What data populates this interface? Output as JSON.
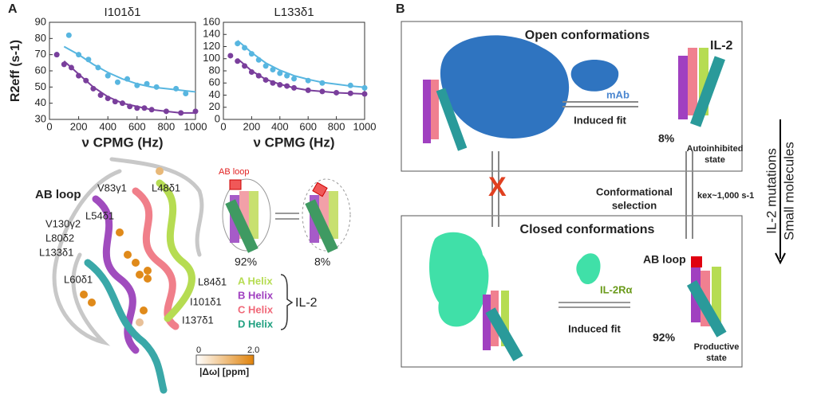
{
  "chart_data": [
    {
      "type": "scatter",
      "title": "I101δ1",
      "ylabel": "R2eff (s-1)",
      "xlabel": "ν CPMG (Hz)",
      "xlim": [
        0,
        1000
      ],
      "xticks": [
        0,
        200,
        400,
        600,
        800,
        1000
      ],
      "ylim": [
        30,
        90
      ],
      "yticks": [
        30,
        40,
        50,
        60,
        70,
        80,
        90
      ],
      "series": [
        {
          "color": "#58b6e0",
          "mode": "markers",
          "x": [
            50,
            133,
            200,
            267,
            333,
            400,
            467,
            533,
            600,
            667,
            733,
            867,
            933
          ],
          "values": [
            70,
            82,
            70,
            67,
            62,
            57,
            53,
            55,
            51,
            52,
            50,
            49,
            46
          ]
        },
        {
          "color": "#58b6e0",
          "mode": "line",
          "x": [
            100,
            200,
            300,
            400,
            500,
            600,
            700,
            800,
            900,
            1000
          ],
          "values": [
            75,
            70,
            64,
            59,
            55,
            52,
            50,
            49,
            48,
            47
          ]
        },
        {
          "color": "#7a3f9c",
          "mode": "markers",
          "x": [
            50,
            100,
            150,
            200,
            250,
            300,
            350,
            400,
            450,
            500,
            550,
            600,
            650,
            700,
            800,
            900,
            1000
          ],
          "values": [
            70,
            64,
            62,
            57,
            54,
            49,
            45,
            43,
            41,
            40,
            38,
            37,
            37,
            36,
            35,
            34,
            35
          ]
        },
        {
          "color": "#7a3f9c",
          "mode": "line",
          "x": [
            100,
            200,
            300,
            400,
            500,
            600,
            700,
            800,
            900,
            1000
          ],
          "values": [
            66,
            58,
            50,
            44,
            40,
            38,
            36,
            35,
            34,
            34
          ]
        }
      ]
    },
    {
      "type": "scatter",
      "title": "L133δ1",
      "xlabel": "ν CPMG (Hz)",
      "xlim": [
        0,
        1000
      ],
      "xticks": [
        0,
        200,
        400,
        600,
        800,
        1000
      ],
      "ylim": [
        0,
        160
      ],
      "yticks": [
        0,
        20,
        40,
        60,
        80,
        100,
        120,
        140,
        160
      ],
      "series": [
        {
          "color": "#58b6e0",
          "mode": "markers",
          "x": [
            100,
            150,
            200,
            250,
            300,
            350,
            400,
            450,
            500,
            600,
            700,
            900,
            1000
          ],
          "values": [
            125,
            118,
            108,
            98,
            88,
            82,
            76,
            72,
            67,
            64,
            60,
            56,
            52
          ]
        },
        {
          "color": "#58b6e0",
          "mode": "line",
          "x": [
            100,
            200,
            300,
            400,
            500,
            600,
            700,
            800,
            900,
            1000
          ],
          "values": [
            130,
            110,
            93,
            81,
            72,
            66,
            61,
            58,
            55,
            53
          ]
        },
        {
          "color": "#7a3f9c",
          "mode": "markers",
          "x": [
            50,
            100,
            150,
            200,
            250,
            300,
            350,
            400,
            450,
            500,
            600,
            700,
            800,
            900,
            1000
          ],
          "values": [
            105,
            96,
            88,
            78,
            72,
            65,
            60,
            57,
            55,
            52,
            48,
            46,
            44,
            43,
            42
          ]
        },
        {
          "color": "#7a3f9c",
          "mode": "line",
          "x": [
            100,
            200,
            300,
            400,
            500,
            600,
            700,
            800,
            900,
            1000
          ],
          "values": [
            100,
            80,
            66,
            58,
            52,
            48,
            46,
            44,
            43,
            42
          ]
        }
      ]
    }
  ],
  "figure": {
    "panel_a": {
      "letter": "A",
      "ab_loop": "AB loop",
      "residues": [
        "V83γ1",
        "L48δ1",
        "L54δ1",
        "V130γ2",
        "L80δ2",
        "L133δ1",
        "L60δ1",
        "L84δ1",
        "I101δ1",
        "I137δ1"
      ],
      "helices": [
        "A Helix",
        "B Helix",
        "C Helix",
        "D Helix"
      ],
      "il2": "IL-2",
      "colorbar": {
        "min": "0",
        "max": "2.0",
        "label": "|Δω| [ppm]"
      },
      "schematic": {
        "loop": "AB loop",
        "left": "92%",
        "right": "8%"
      }
    },
    "panel_b": {
      "letter": "B",
      "open": "Open conformations",
      "il2": "IL-2",
      "mab": "mAb",
      "induced_top": "Induced fit",
      "pct_top": "8%",
      "autoinhibited": [
        "Autoinhibited",
        "state"
      ],
      "selection": [
        "Conformational",
        "selection"
      ],
      "kex": "kex~1,000 s-1",
      "closed": "Closed conformations",
      "ab_loop": "AB loop",
      "receptor": "IL-2Rα",
      "induced_bottom": "Induced fit",
      "pct_bottom": "92%",
      "productive": [
        "Productive",
        "state"
      ],
      "cross": "X",
      "side": [
        "IL-2 mutations",
        "Small molecules"
      ]
    }
  }
}
